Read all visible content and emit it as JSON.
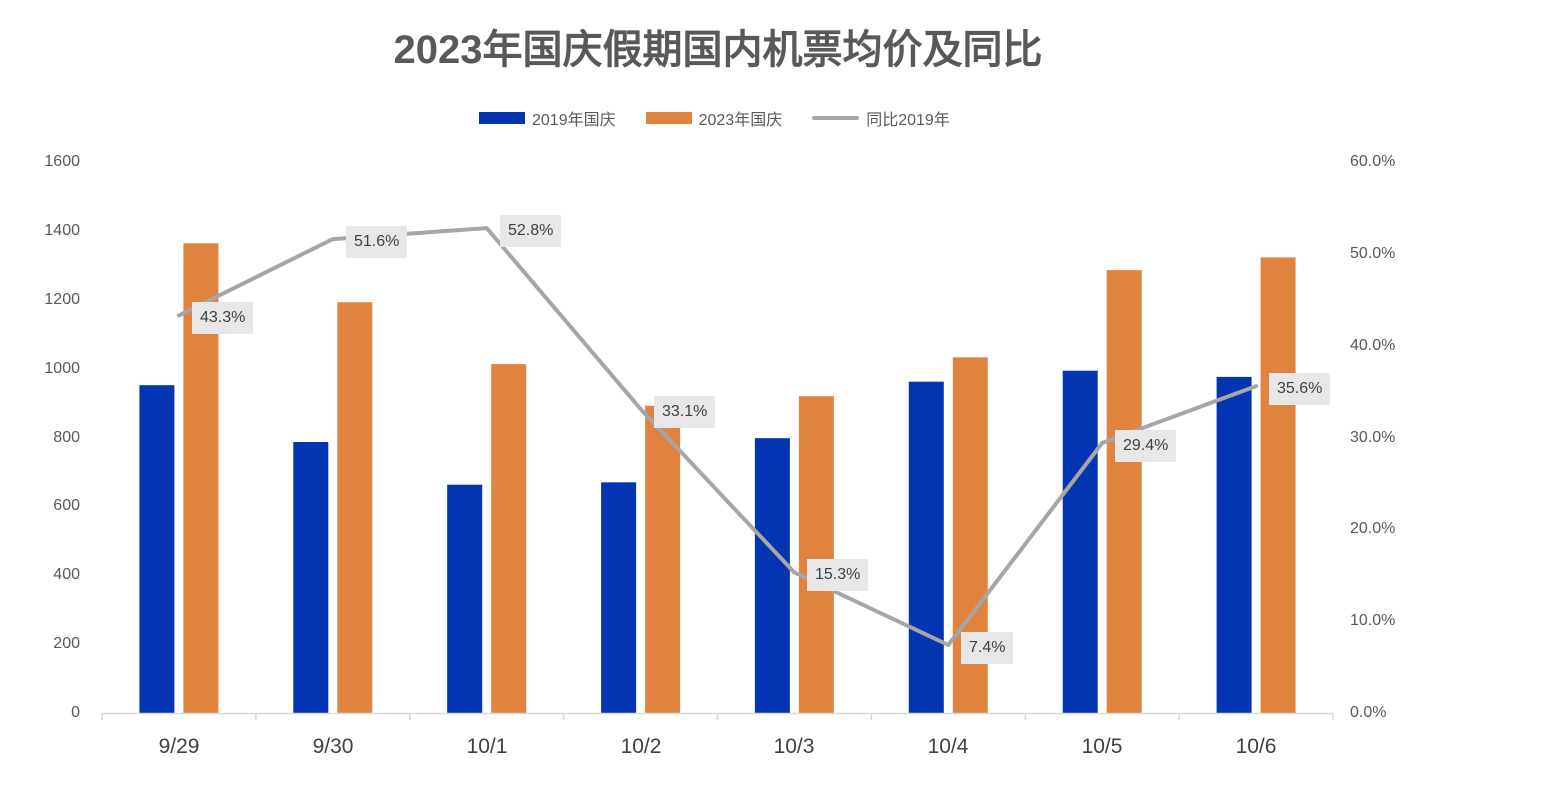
{
  "chart_data": {
    "type": "bar",
    "title": "2023年国庆假期国内机票均价及同比",
    "categories": [
      "9/29",
      "9/30",
      "10/1",
      "10/2",
      "10/3",
      "10/4",
      "10/5",
      "10/6"
    ],
    "series": [
      {
        "name": "2019年国庆",
        "type": "bar",
        "axis": "left",
        "color": "#0334B1",
        "values": [
          952,
          787,
          663,
          670,
          798,
          962,
          994,
          976
        ]
      },
      {
        "name": "2023年国庆",
        "type": "bar",
        "axis": "left",
        "color": "#E0833F",
        "values": [
          1364,
          1193,
          1013,
          892,
          920,
          1033,
          1286,
          1323
        ]
      },
      {
        "name": "同比2019年",
        "type": "line",
        "axis": "right",
        "color": "#A6A6A6",
        "values": [
          43.3,
          51.6,
          52.8,
          33.1,
          15.3,
          7.4,
          29.4,
          35.6
        ],
        "labels": [
          "43.3%",
          "51.6%",
          "52.8%",
          "33.1%",
          "15.3%",
          "7.4%",
          "29.4%",
          "35.6%"
        ]
      }
    ],
    "y_left": {
      "range": [
        0,
        1600
      ],
      "ticks": [
        0,
        200,
        400,
        600,
        800,
        1000,
        1200,
        1400,
        1600
      ]
    },
    "y_right": {
      "range": [
        0,
        60
      ],
      "ticks": [
        0,
        10,
        20,
        30,
        40,
        50,
        60
      ],
      "tick_labels": [
        "0.0%",
        "10.0%",
        "20.0%",
        "30.0%",
        "40.0%",
        "50.0%",
        "60.0%"
      ]
    },
    "grid": false,
    "legend_position": "top",
    "axis_color": "#D9D9D9"
  }
}
